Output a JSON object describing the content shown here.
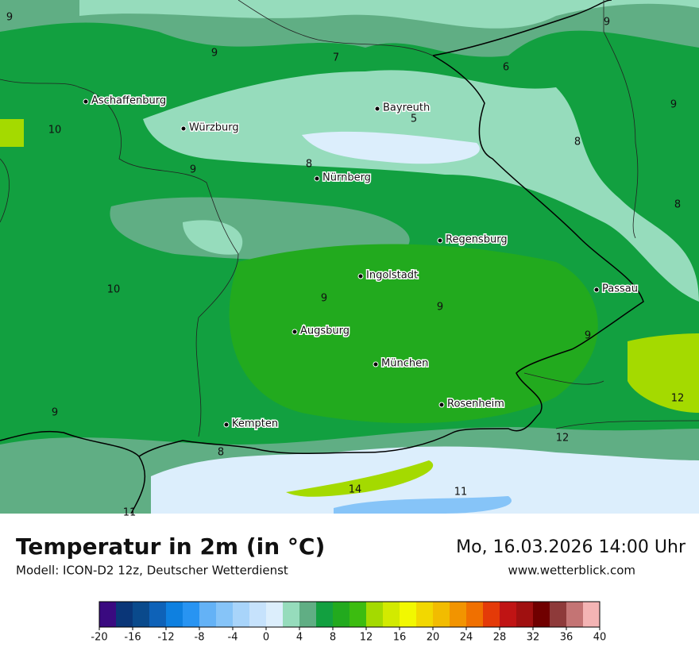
{
  "header": {
    "title": "Temperatur in 2m (in °C)",
    "model": "Modell: ICON-D2 12z, Deutscher Wetterdienst",
    "datetime": "Mo, 16.03.2026 14:00 Uhr",
    "website": "www.wetterblick.com"
  },
  "map": {
    "cities": [
      "Aschaffenburg",
      "Würzburg",
      "Bayreuth",
      "Nürnberg",
      "Regensburg",
      "Ingolstadt",
      "Passau",
      "Augsburg",
      "München",
      "Rosenheim",
      "Kempten"
    ],
    "labels": [
      9,
      9,
      7,
      6,
      9,
      9,
      5,
      10,
      8,
      9,
      8,
      8,
      10,
      9,
      9,
      9,
      9,
      12,
      12,
      8,
      14,
      11,
      11
    ]
  },
  "legend": {
    "bins": [
      -20,
      -18,
      -16,
      -14,
      -12,
      -10,
      -8,
      -6,
      -4,
      -2,
      0,
      2,
      4,
      6,
      8,
      10,
      12,
      14,
      16,
      18,
      20,
      22,
      24,
      26,
      28,
      30,
      32,
      34,
      36,
      38,
      40
    ],
    "colors": [
      "#3a0a80",
      "#0a3678",
      "#0a4a8c",
      "#0e62b8",
      "#0e80e0",
      "#2894f2",
      "#64b2f6",
      "#86c4f8",
      "#a8d4fa",
      "#c6e2fc",
      "#dceefc",
      "#96dcbc",
      "#60ae84",
      "#12a040",
      "#22aa1e",
      "#3cbc10",
      "#a4da00",
      "#d2ea00",
      "#f2f800",
      "#f2d800",
      "#f2bc00",
      "#f29400",
      "#f07000",
      "#e43a08",
      "#c01414",
      "#a01010",
      "#700000",
      "#8e3a3a",
      "#c47474",
      "#f4b4b4"
    ],
    "ticks": [
      -20,
      -16,
      -12,
      -8,
      -4,
      0,
      4,
      8,
      12,
      16,
      20,
      24,
      28,
      32,
      36,
      40
    ]
  }
}
